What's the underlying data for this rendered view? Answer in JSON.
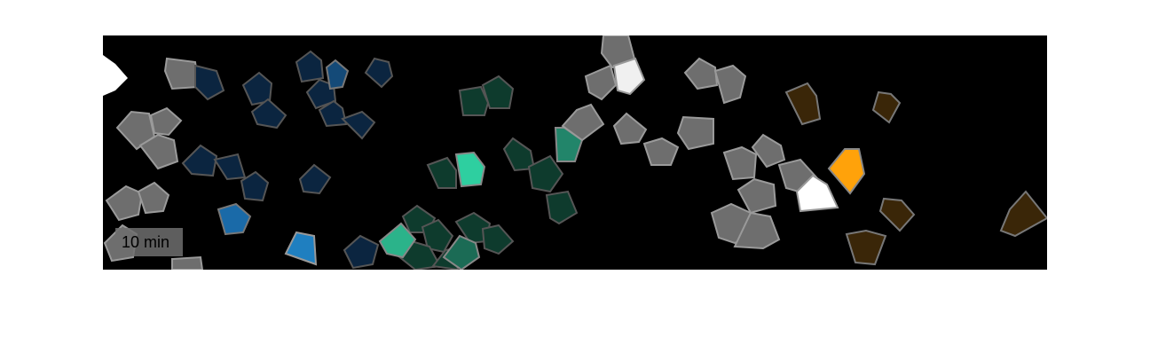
{
  "time_label": "10 min",
  "colors": {
    "background": "#000000",
    "page": "#ffffff",
    "gray_cell": "#6e6e6e",
    "dark_blue_cell": "#0b2540",
    "blue_cell": "#1f7fc0",
    "dark_green_cell": "#0e3b2d",
    "bright_green_cell": "#2ecfa0",
    "dark_brown_cell": "#3a2608",
    "orange_cell": "#ffa20a",
    "white_cell": "#ffffff"
  }
}
